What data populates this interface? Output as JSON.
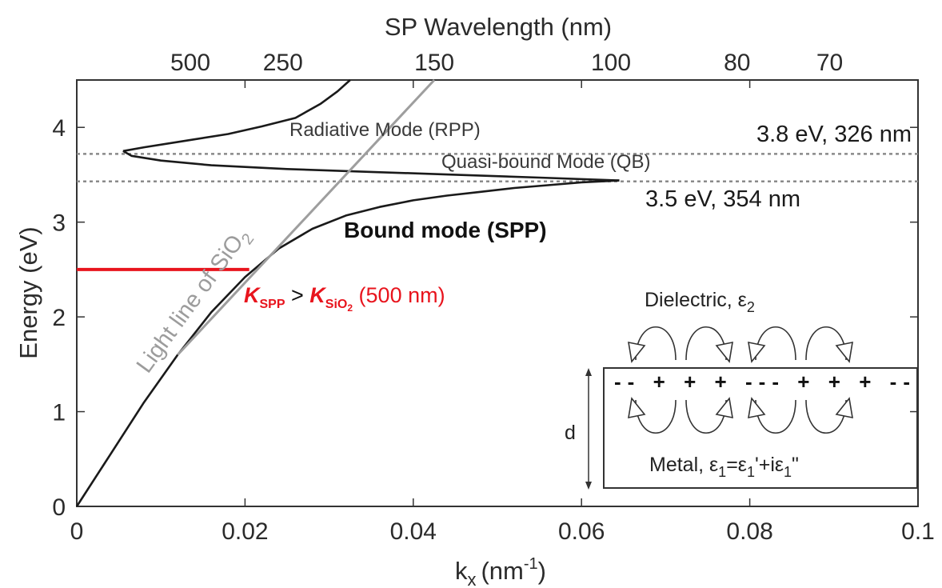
{
  "chart_data": {
    "type": "line",
    "xlabel": "k",
    "xlabel_sub": "x",
    "xlabel_unit_open": "(nm",
    "xlabel_unit_sup": "-1",
    "xlabel_unit_close": ")",
    "ylabel": "Energy (eV)",
    "top_axis_label": "SP Wavelength (nm)",
    "xlim": [
      0,
      0.1
    ],
    "ylim": [
      0,
      4.5
    ],
    "x_ticks": [
      "0",
      "0.02",
      "0.04",
      "0.06",
      "0.08",
      "0.1"
    ],
    "x_tick_values": [
      0,
      0.02,
      0.04,
      0.06,
      0.08,
      0.1
    ],
    "y_ticks": [
      "0",
      "1",
      "2",
      "3",
      "4"
    ],
    "y_tick_values": [
      0,
      1,
      2,
      3,
      4
    ],
    "top_ticks": [
      "500",
      "250",
      "150",
      "100",
      "80",
      "70"
    ],
    "top_tick_x_values": [
      0.0135,
      0.0245,
      0.0425,
      0.0635,
      0.0785,
      0.0895
    ],
    "series": [
      {
        "key": "bound",
        "color": "#1a1a1a",
        "points": [
          [
            0,
            0
          ],
          [
            0.004,
            0.55
          ],
          [
            0.008,
            1.1
          ],
          [
            0.012,
            1.6
          ],
          [
            0.016,
            2.05
          ],
          [
            0.02,
            2.42
          ],
          [
            0.024,
            2.72
          ],
          [
            0.028,
            2.93
          ],
          [
            0.032,
            3.07
          ],
          [
            0.036,
            3.16
          ],
          [
            0.04,
            3.23
          ],
          [
            0.044,
            3.28
          ],
          [
            0.048,
            3.32
          ],
          [
            0.052,
            3.36
          ],
          [
            0.056,
            3.39
          ],
          [
            0.06,
            3.42
          ],
          [
            0.0645,
            3.44
          ]
        ]
      },
      {
        "key": "quasi-bound",
        "color": "#1a1a1a",
        "points": [
          [
            0.0645,
            3.44
          ],
          [
            0.055,
            3.47
          ],
          [
            0.045,
            3.5
          ],
          [
            0.035,
            3.53
          ],
          [
            0.025,
            3.56
          ],
          [
            0.016,
            3.6
          ],
          [
            0.01,
            3.65
          ],
          [
            0.0065,
            3.7
          ],
          [
            0.0055,
            3.75
          ]
        ]
      },
      {
        "key": "radiative",
        "color": "#1a1a1a",
        "points": [
          [
            0.0055,
            3.75
          ],
          [
            0.008,
            3.79
          ],
          [
            0.013,
            3.86
          ],
          [
            0.018,
            3.93
          ],
          [
            0.022,
            4.01
          ],
          [
            0.026,
            4.1
          ],
          [
            0.029,
            4.25
          ],
          [
            0.031,
            4.38
          ],
          [
            0.0325,
            4.5
          ]
        ]
      },
      {
        "key": "light-line",
        "color": "#9e9e9e",
        "points": [
          [
            0.012,
            1.6
          ],
          [
            0.0425,
            4.5
          ]
        ]
      }
    ],
    "reference_lines": [
      {
        "y": 3.72,
        "label": "3.8 eV, 326 nm"
      },
      {
        "y": 3.43,
        "label": "3.5 eV, 354 nm"
      }
    ],
    "highlight_line": {
      "x0": 0,
      "x1": 0.0205,
      "y": 2.5,
      "color": "#e8141d"
    },
    "annotations": {
      "radiative": "Radiative Mode (RPP)",
      "quasi_bound": "Quasi-bound Mode (QB)",
      "bound": "Bound mode (SPP)",
      "light_line_prefix": "Light line of SiO",
      "light_line_sub": "2",
      "k_spp_main": "K",
      "k_spp_sub": "SPP",
      "compare_sign": " > ",
      "k_sio2_main": "K",
      "k_sio2_sub": "SiO",
      "k_sio2_subsub": "2",
      "k_note": " (500 nm)"
    },
    "inset": {
      "dielectric_label": "Dielectric, ε",
      "dielectric_sub": "2",
      "metal_label_1": "Metal, ε",
      "metal_sub_1": "1",
      "metal_label_2": "=ε",
      "metal_sub_2": "1",
      "metal_label_3": "'+iε",
      "metal_sub_3": "1",
      "metal_label_4": "\"",
      "thickness_label": "d",
      "charge_row": "-- + + + --- + + + --"
    },
    "colors": {
      "curve": "#1a1a1a",
      "light_line": "#9e9e9e",
      "highlight": "#e8141d",
      "reference": "#8a8a8a"
    }
  }
}
